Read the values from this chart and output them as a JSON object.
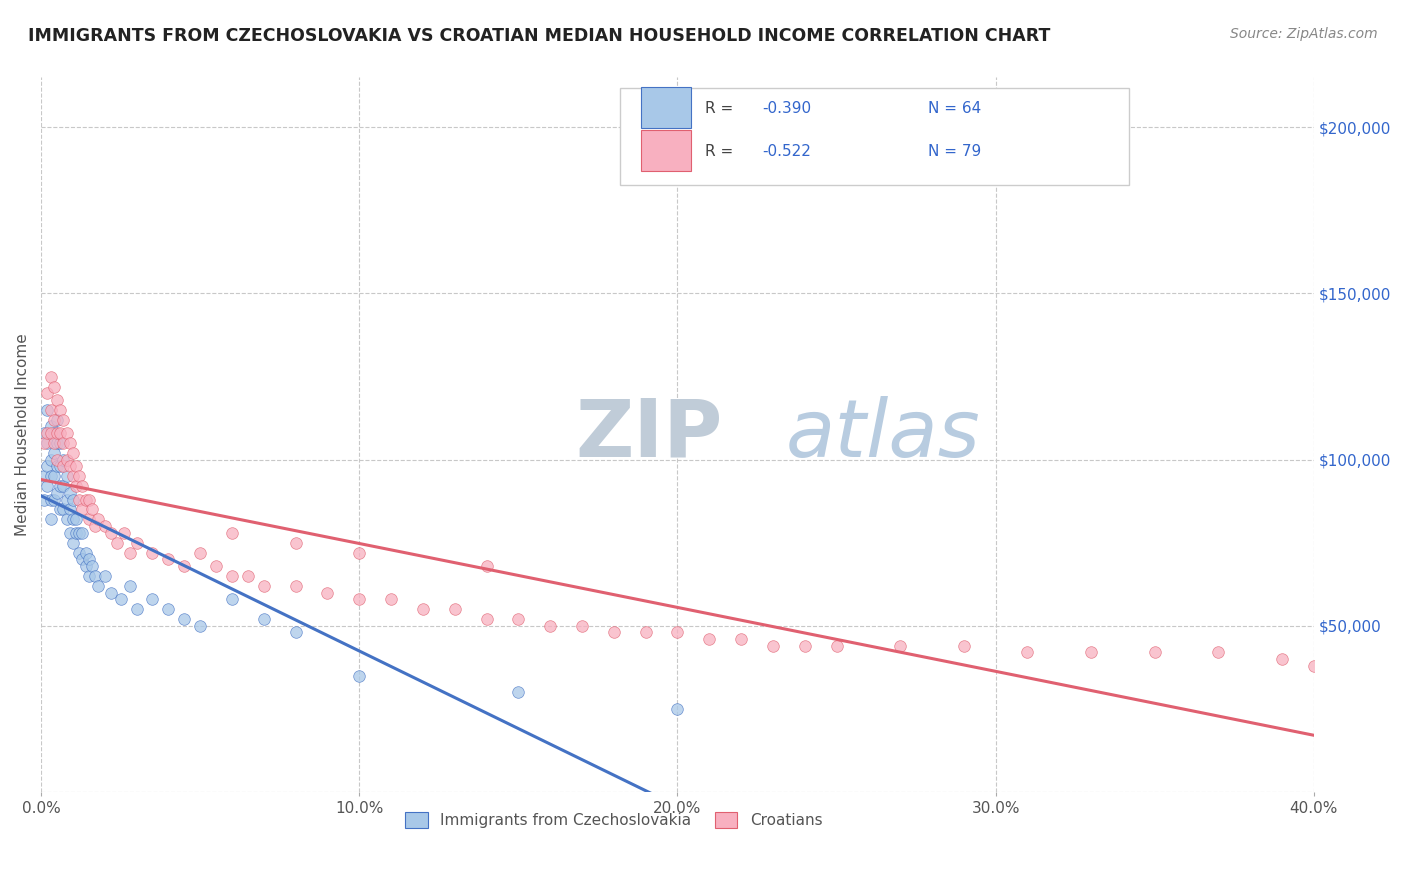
{
  "title": "IMMIGRANTS FROM CZECHOSLOVAKIA VS CROATIAN MEDIAN HOUSEHOLD INCOME CORRELATION CHART",
  "source": "Source: ZipAtlas.com",
  "ylabel": "Median Household Income",
  "xlim": [
    0.0,
    0.4
  ],
  "ylim": [
    0,
    215000
  ],
  "yticks": [
    0,
    50000,
    100000,
    150000,
    200000
  ],
  "ytick_labels": [
    "",
    "$50,000",
    "$100,000",
    "$150,000",
    "$200,000"
  ],
  "xtick_labels": [
    "0.0%",
    "10.0%",
    "20.0%",
    "30.0%",
    "40.0%"
  ],
  "xtick_vals": [
    0.0,
    0.1,
    0.2,
    0.3,
    0.4
  ],
  "background_color": "#ffffff",
  "grid_color": "#c8c8c8",
  "legend_R1": "-0.390",
  "legend_N1": "64",
  "legend_R2": "-0.522",
  "legend_N2": "79",
  "color_blue": "#a8c8e8",
  "color_pink": "#f8b0c0",
  "line_blue": "#4472c4",
  "line_pink": "#e8607080",
  "line_pink_solid": "#e06070",
  "label_blue": "Immigrants from Czechoslovakia",
  "label_pink": "Croatians",
  "watermark_zip": "ZIP",
  "watermark_atlas": "atlas",
  "watermark_color_zip": "#c8d4e0",
  "watermark_color_atlas": "#b0c8e0",
  "blue_scatter_x": [
    0.001,
    0.001,
    0.001,
    0.002,
    0.002,
    0.002,
    0.002,
    0.003,
    0.003,
    0.003,
    0.003,
    0.003,
    0.004,
    0.004,
    0.004,
    0.004,
    0.005,
    0.005,
    0.005,
    0.005,
    0.006,
    0.006,
    0.006,
    0.006,
    0.007,
    0.007,
    0.007,
    0.008,
    0.008,
    0.008,
    0.009,
    0.009,
    0.009,
    0.01,
    0.01,
    0.01,
    0.011,
    0.011,
    0.012,
    0.012,
    0.013,
    0.013,
    0.014,
    0.014,
    0.015,
    0.015,
    0.016,
    0.017,
    0.018,
    0.02,
    0.022,
    0.025,
    0.028,
    0.03,
    0.035,
    0.04,
    0.045,
    0.05,
    0.06,
    0.07,
    0.08,
    0.1,
    0.15,
    0.2
  ],
  "blue_scatter_y": [
    108000,
    95000,
    88000,
    115000,
    105000,
    98000,
    92000,
    110000,
    100000,
    95000,
    88000,
    82000,
    108000,
    102000,
    95000,
    88000,
    112000,
    105000,
    98000,
    90000,
    105000,
    98000,
    92000,
    85000,
    100000,
    92000,
    85000,
    95000,
    88000,
    82000,
    90000,
    85000,
    78000,
    88000,
    82000,
    75000,
    82000,
    78000,
    78000,
    72000,
    78000,
    70000,
    72000,
    68000,
    70000,
    65000,
    68000,
    65000,
    62000,
    65000,
    60000,
    58000,
    62000,
    55000,
    58000,
    55000,
    52000,
    50000,
    58000,
    52000,
    48000,
    35000,
    30000,
    25000
  ],
  "pink_scatter_x": [
    0.001,
    0.002,
    0.002,
    0.003,
    0.003,
    0.003,
    0.004,
    0.004,
    0.004,
    0.005,
    0.005,
    0.005,
    0.006,
    0.006,
    0.007,
    0.007,
    0.007,
    0.008,
    0.008,
    0.009,
    0.009,
    0.01,
    0.01,
    0.011,
    0.011,
    0.012,
    0.012,
    0.013,
    0.013,
    0.014,
    0.015,
    0.015,
    0.016,
    0.017,
    0.018,
    0.02,
    0.022,
    0.024,
    0.026,
    0.028,
    0.03,
    0.035,
    0.04,
    0.045,
    0.05,
    0.055,
    0.06,
    0.065,
    0.07,
    0.08,
    0.09,
    0.1,
    0.11,
    0.12,
    0.13,
    0.14,
    0.15,
    0.16,
    0.17,
    0.18,
    0.19,
    0.2,
    0.21,
    0.22,
    0.23,
    0.24,
    0.25,
    0.27,
    0.29,
    0.31,
    0.33,
    0.35,
    0.37,
    0.39,
    0.4,
    0.06,
    0.08,
    0.1,
    0.14
  ],
  "pink_scatter_y": [
    105000,
    120000,
    108000,
    125000,
    115000,
    108000,
    122000,
    112000,
    105000,
    118000,
    108000,
    100000,
    115000,
    108000,
    112000,
    105000,
    98000,
    108000,
    100000,
    105000,
    98000,
    102000,
    95000,
    98000,
    92000,
    95000,
    88000,
    92000,
    85000,
    88000,
    88000,
    82000,
    85000,
    80000,
    82000,
    80000,
    78000,
    75000,
    78000,
    72000,
    75000,
    72000,
    70000,
    68000,
    72000,
    68000,
    65000,
    65000,
    62000,
    62000,
    60000,
    58000,
    58000,
    55000,
    55000,
    52000,
    52000,
    50000,
    50000,
    48000,
    48000,
    48000,
    46000,
    46000,
    44000,
    44000,
    44000,
    44000,
    44000,
    42000,
    42000,
    42000,
    42000,
    40000,
    38000,
    78000,
    75000,
    72000,
    68000
  ]
}
